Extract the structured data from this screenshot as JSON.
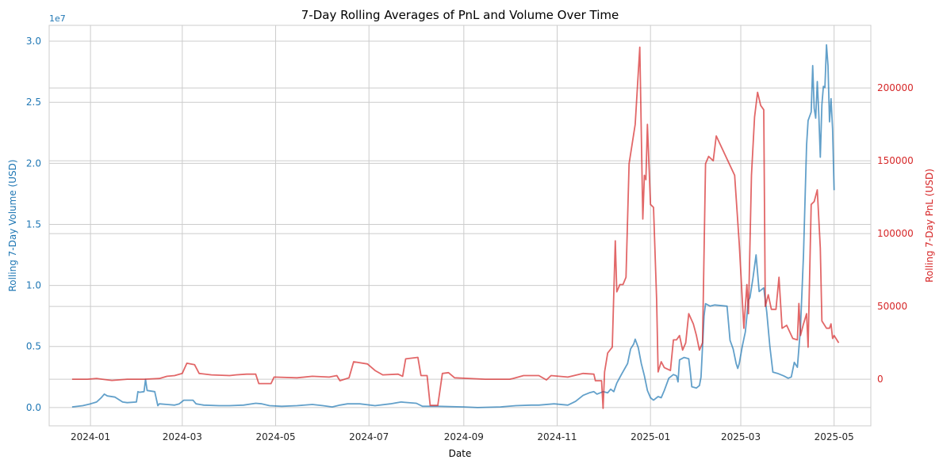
{
  "chart_data": {
    "type": "line",
    "title": "7-Day Rolling Averages of PnL and Volume Over Time",
    "xlabel": "Date",
    "ylabel_left": "Rolling 7-Day Volume (USD)",
    "ylabel_right": "Rolling 7-Day PnL (USD)",
    "left_offset_label": "1e7",
    "grid": true,
    "x_axis": {
      "range": [
        "2023-12-05",
        "2025-05-25"
      ],
      "ticks": [
        "2024-01-01",
        "2024-03-01",
        "2024-05-01",
        "2024-07-01",
        "2024-09-01",
        "2024-11-01",
        "2025-01-01",
        "2025-03-01",
        "2025-05-01"
      ],
      "tick_labels": [
        "2024-01",
        "2024-03",
        "2024-05",
        "2024-07",
        "2024-09",
        "2024-11",
        "2025-01",
        "2025-03",
        "2025-05"
      ]
    },
    "y_left": {
      "range": [
        -1.5,
        31.3
      ],
      "ticks": [
        0,
        5,
        10,
        15,
        20,
        25,
        30
      ],
      "tick_labels": [
        "0.0",
        "0.5",
        "1.0",
        "1.5",
        "2.0",
        "2.5",
        "3.0"
      ],
      "color": "#1f77b4"
    },
    "y_right": {
      "range": [
        -32000,
        243000
      ],
      "ticks": [
        0,
        50000,
        100000,
        150000,
        200000
      ],
      "tick_labels": [
        "0",
        "50000",
        "100000",
        "150000",
        "200000"
      ],
      "color": "#d62728"
    },
    "series": [
      {
        "axis": "left",
        "color": "#1f77b4",
        "points": [
          [
            "2023-12-20",
            0.05
          ],
          [
            "2023-12-27",
            0.15
          ],
          [
            "2024-01-01",
            0.3
          ],
          [
            "2024-01-05",
            0.45
          ],
          [
            "2024-01-08",
            0.8
          ],
          [
            "2024-01-10",
            1.1
          ],
          [
            "2024-01-12",
            0.95
          ],
          [
            "2024-01-17",
            0.85
          ],
          [
            "2024-01-22",
            0.45
          ],
          [
            "2024-01-25",
            0.4
          ],
          [
            "2024-01-31",
            0.45
          ],
          [
            "2024-02-01",
            1.3
          ],
          [
            "2024-02-02",
            1.25
          ],
          [
            "2024-02-05",
            1.3
          ],
          [
            "2024-02-06",
            2.3
          ],
          [
            "2024-02-07",
            1.4
          ],
          [
            "2024-02-12",
            1.3
          ],
          [
            "2024-02-14",
            0.15
          ],
          [
            "2024-02-15",
            0.3
          ],
          [
            "2024-02-20",
            0.25
          ],
          [
            "2024-02-25",
            0.2
          ],
          [
            "2024-02-28",
            0.3
          ],
          [
            "2024-03-02",
            0.6
          ],
          [
            "2024-03-08",
            0.6
          ],
          [
            "2024-03-10",
            0.3
          ],
          [
            "2024-03-15",
            0.2
          ],
          [
            "2024-03-25",
            0.15
          ],
          [
            "2024-04-01",
            0.15
          ],
          [
            "2024-04-10",
            0.2
          ],
          [
            "2024-04-18",
            0.35
          ],
          [
            "2024-04-22",
            0.3
          ],
          [
            "2024-04-27",
            0.15
          ],
          [
            "2024-05-05",
            0.1
          ],
          [
            "2024-05-15",
            0.15
          ],
          [
            "2024-05-25",
            0.25
          ],
          [
            "2024-06-01",
            0.15
          ],
          [
            "2024-06-07",
            0.05
          ],
          [
            "2024-06-12",
            0.2
          ],
          [
            "2024-06-17",
            0.3
          ],
          [
            "2024-06-25",
            0.3
          ],
          [
            "2024-07-05",
            0.15
          ],
          [
            "2024-07-15",
            0.3
          ],
          [
            "2024-07-22",
            0.45
          ],
          [
            "2024-08-01",
            0.35
          ],
          [
            "2024-08-05",
            0.1
          ],
          [
            "2024-08-15",
            0.1
          ],
          [
            "2024-09-01",
            0.05
          ],
          [
            "2024-09-10",
            0.0
          ],
          [
            "2024-09-25",
            0.05
          ],
          [
            "2024-10-05",
            0.15
          ],
          [
            "2024-10-15",
            0.2
          ],
          [
            "2024-10-20",
            0.2
          ],
          [
            "2024-10-30",
            0.3
          ],
          [
            "2024-11-08",
            0.2
          ],
          [
            "2024-11-13",
            0.5
          ],
          [
            "2024-11-18",
            1.0
          ],
          [
            "2024-11-22",
            1.2
          ],
          [
            "2024-11-25",
            1.3
          ],
          [
            "2024-11-27",
            1.1
          ],
          [
            "2024-12-01",
            1.3
          ],
          [
            "2024-12-04",
            1.2
          ],
          [
            "2024-12-06",
            1.5
          ],
          [
            "2024-12-08",
            1.3
          ],
          [
            "2024-12-10",
            2.0
          ],
          [
            "2024-12-13",
            2.7
          ],
          [
            "2024-12-17",
            3.6
          ],
          [
            "2024-12-19",
            4.8
          ],
          [
            "2024-12-21",
            5.2
          ],
          [
            "2024-12-22",
            5.6
          ],
          [
            "2024-12-24",
            4.9
          ],
          [
            "2024-12-26",
            3.6
          ],
          [
            "2024-12-28",
            2.6
          ],
          [
            "2024-12-30",
            1.4
          ],
          [
            "2025-01-01",
            0.8
          ],
          [
            "2025-01-03",
            0.6
          ],
          [
            "2025-01-06",
            0.9
          ],
          [
            "2025-01-08",
            0.8
          ],
          [
            "2025-01-10",
            1.4
          ],
          [
            "2025-01-13",
            2.4
          ],
          [
            "2025-01-16",
            2.7
          ],
          [
            "2025-01-18",
            2.6
          ],
          [
            "2025-01-19",
            2.1
          ],
          [
            "2025-01-20",
            3.9
          ],
          [
            "2025-01-23",
            4.1
          ],
          [
            "2025-01-26",
            4.0
          ],
          [
            "2025-01-27",
            2.9
          ],
          [
            "2025-01-28",
            1.7
          ],
          [
            "2025-01-31",
            1.6
          ],
          [
            "2025-02-02",
            1.8
          ],
          [
            "2025-02-03",
            2.5
          ],
          [
            "2025-02-05",
            7.5
          ],
          [
            "2025-02-06",
            8.5
          ],
          [
            "2025-02-09",
            8.3
          ],
          [
            "2025-02-12",
            8.4
          ],
          [
            "2025-02-20",
            8.3
          ],
          [
            "2025-02-22",
            5.5
          ],
          [
            "2025-02-24",
            4.8
          ],
          [
            "2025-02-26",
            3.6
          ],
          [
            "2025-02-27",
            3.2
          ],
          [
            "2025-02-28",
            3.6
          ],
          [
            "2025-03-02",
            5.0
          ],
          [
            "2025-03-04",
            6.2
          ],
          [
            "2025-03-06",
            8.8
          ],
          [
            "2025-03-07",
            9.0
          ],
          [
            "2025-03-09",
            10.6
          ],
          [
            "2025-03-11",
            12.5
          ],
          [
            "2025-03-13",
            9.5
          ],
          [
            "2025-03-16",
            9.8
          ],
          [
            "2025-03-18",
            7.8
          ],
          [
            "2025-03-20",
            5.0
          ],
          [
            "2025-03-22",
            2.9
          ],
          [
            "2025-03-25",
            2.8
          ],
          [
            "2025-03-29",
            2.6
          ],
          [
            "2025-04-01",
            2.4
          ],
          [
            "2025-04-03",
            2.5
          ],
          [
            "2025-04-05",
            3.7
          ],
          [
            "2025-04-07",
            3.3
          ],
          [
            "2025-04-09",
            6.5
          ],
          [
            "2025-04-11",
            12.5
          ],
          [
            "2025-04-13",
            21.5
          ],
          [
            "2025-04-14",
            23.5
          ],
          [
            "2025-04-16",
            24.2
          ],
          [
            "2025-04-17",
            28.0
          ],
          [
            "2025-04-18",
            24.5
          ],
          [
            "2025-04-19",
            23.7
          ],
          [
            "2025-04-20",
            26.7
          ],
          [
            "2025-04-21",
            24.0
          ],
          [
            "2025-04-22",
            20.5
          ],
          [
            "2025-04-23",
            24.8
          ],
          [
            "2025-04-24",
            26.3
          ],
          [
            "2025-04-25",
            26.2
          ],
          [
            "2025-04-26",
            29.7
          ],
          [
            "2025-04-27",
            28.0
          ],
          [
            "2025-04-28",
            23.4
          ],
          [
            "2025-04-29",
            25.3
          ],
          [
            "2025-04-30",
            22.8
          ],
          [
            "2025-05-01",
            17.8
          ]
        ]
      },
      {
        "axis": "right",
        "color": "#d62728",
        "points": [
          [
            "2023-12-20",
            0
          ],
          [
            "2023-12-30",
            0
          ],
          [
            "2024-01-05",
            500
          ],
          [
            "2024-01-15",
            -800
          ],
          [
            "2024-01-25",
            0
          ],
          [
            "2024-02-05",
            0
          ],
          [
            "2024-02-15",
            500
          ],
          [
            "2024-02-20",
            2000
          ],
          [
            "2024-02-25",
            2500
          ],
          [
            "2024-03-01",
            4000
          ],
          [
            "2024-03-04",
            11000
          ],
          [
            "2024-03-09",
            10000
          ],
          [
            "2024-03-12",
            4000
          ],
          [
            "2024-03-20",
            3000
          ],
          [
            "2024-04-01",
            2500
          ],
          [
            "2024-04-05",
            3000
          ],
          [
            "2024-04-12",
            3500
          ],
          [
            "2024-04-18",
            3500
          ],
          [
            "2024-04-20",
            -3000
          ],
          [
            "2024-04-28",
            -3000
          ],
          [
            "2024-04-30",
            1500
          ],
          [
            "2024-05-15",
            1000
          ],
          [
            "2024-05-25",
            2000
          ],
          [
            "2024-06-05",
            1500
          ],
          [
            "2024-06-10",
            2500
          ],
          [
            "2024-06-12",
            -1000
          ],
          [
            "2024-06-18",
            1000
          ],
          [
            "2024-06-21",
            12000
          ],
          [
            "2024-06-30",
            10500
          ],
          [
            "2024-07-05",
            6000
          ],
          [
            "2024-07-10",
            3000
          ],
          [
            "2024-07-20",
            3500
          ],
          [
            "2024-07-23",
            2000
          ],
          [
            "2024-07-25",
            14000
          ],
          [
            "2024-08-02",
            15000
          ],
          [
            "2024-08-04",
            2500
          ],
          [
            "2024-08-08",
            2500
          ],
          [
            "2024-08-10",
            -18000
          ],
          [
            "2024-08-15",
            -18000
          ],
          [
            "2024-08-18",
            4000
          ],
          [
            "2024-08-22",
            4500
          ],
          [
            "2024-08-26",
            1000
          ],
          [
            "2024-09-15",
            0
          ],
          [
            "2024-10-01",
            0
          ],
          [
            "2024-10-03",
            500
          ],
          [
            "2024-10-10",
            2500
          ],
          [
            "2024-10-20",
            2500
          ],
          [
            "2024-10-25",
            -500
          ],
          [
            "2024-10-28",
            2500
          ],
          [
            "2024-11-08",
            1500
          ],
          [
            "2024-11-18",
            4000
          ],
          [
            "2024-11-25",
            3500
          ],
          [
            "2024-11-26",
            -1000
          ],
          [
            "2024-11-30",
            -1000
          ],
          [
            "2024-12-01",
            -20000
          ],
          [
            "2024-12-02",
            5000
          ],
          [
            "2024-12-04",
            18000
          ],
          [
            "2024-12-07",
            22000
          ],
          [
            "2024-12-09",
            95000
          ],
          [
            "2024-12-10",
            60000
          ],
          [
            "2024-12-12",
            65000
          ],
          [
            "2024-12-14",
            65000
          ],
          [
            "2024-12-16",
            70000
          ],
          [
            "2024-12-18",
            148000
          ],
          [
            "2024-12-22",
            175000
          ],
          [
            "2024-12-25",
            228000
          ],
          [
            "2024-12-27",
            110000
          ],
          [
            "2024-12-28",
            140000
          ],
          [
            "2024-12-29",
            137000
          ],
          [
            "2024-12-30",
            175000
          ],
          [
            "2025-01-01",
            120000
          ],
          [
            "2025-01-03",
            118000
          ],
          [
            "2025-01-05",
            55000
          ],
          [
            "2025-01-06",
            5000
          ],
          [
            "2025-01-08",
            12000
          ],
          [
            "2025-01-10",
            8000
          ],
          [
            "2025-01-14",
            6000
          ],
          [
            "2025-01-16",
            27000
          ],
          [
            "2025-01-18",
            27000
          ],
          [
            "2025-01-20",
            30000
          ],
          [
            "2025-01-22",
            20000
          ],
          [
            "2025-01-24",
            25000
          ],
          [
            "2025-01-26",
            45000
          ],
          [
            "2025-01-29",
            38000
          ],
          [
            "2025-01-31",
            30000
          ],
          [
            "2025-02-02",
            20000
          ],
          [
            "2025-02-04",
            25000
          ],
          [
            "2025-02-06",
            148000
          ],
          [
            "2025-02-08",
            153000
          ],
          [
            "2025-02-11",
            150000
          ],
          [
            "2025-02-13",
            167000
          ],
          [
            "2025-02-25",
            140000
          ],
          [
            "2025-02-28",
            93000
          ],
          [
            "2025-03-03",
            35000
          ],
          [
            "2025-03-05",
            65000
          ],
          [
            "2025-03-06",
            45000
          ],
          [
            "2025-03-08",
            140000
          ],
          [
            "2025-03-10",
            180000
          ],
          [
            "2025-03-12",
            197000
          ],
          [
            "2025-03-14",
            188000
          ],
          [
            "2025-03-16",
            185000
          ],
          [
            "2025-03-17",
            50000
          ],
          [
            "2025-03-19",
            58000
          ],
          [
            "2025-03-21",
            48000
          ],
          [
            "2025-03-24",
            48000
          ],
          [
            "2025-03-26",
            70000
          ],
          [
            "2025-03-28",
            35000
          ],
          [
            "2025-03-31",
            37000
          ],
          [
            "2025-04-04",
            28000
          ],
          [
            "2025-04-07",
            27000
          ],
          [
            "2025-04-08",
            52000
          ],
          [
            "2025-04-09",
            30000
          ],
          [
            "2025-04-11",
            38000
          ],
          [
            "2025-04-13",
            45000
          ],
          [
            "2025-04-14",
            22000
          ],
          [
            "2025-04-16",
            120000
          ],
          [
            "2025-04-18",
            122000
          ],
          [
            "2025-04-20",
            130000
          ],
          [
            "2025-04-22",
            90000
          ],
          [
            "2025-04-23",
            40000
          ],
          [
            "2025-04-26",
            35000
          ],
          [
            "2025-04-28",
            35000
          ],
          [
            "2025-04-29",
            38000
          ],
          [
            "2025-04-30",
            28000
          ],
          [
            "2025-05-01",
            30000
          ],
          [
            "2025-05-04",
            25000
          ]
        ]
      }
    ]
  }
}
